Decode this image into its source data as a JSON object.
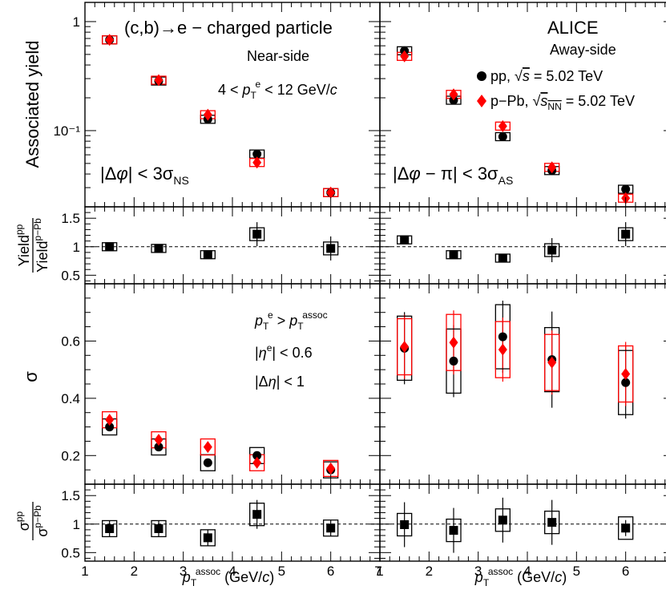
{
  "chart_data": {
    "type": "scatter",
    "experiment": "ALICE",
    "process": "(c,b)→e − charged particle",
    "trigger_range": "4 < p_T^e < 12 GeV/c",
    "near_side_title": "Near-side",
    "away_side_title": "Away-side",
    "near_side_cut": "|Δφ| < 3σ_NS",
    "away_side_cut": "|Δφ − π| < 3σ_AS",
    "kinematic_cuts": [
      "p_T^e > p_T^assoc",
      "|η^e| < 0.6",
      "|Δη| < 1"
    ],
    "xlabel": "p_T^assoc (GeV/c)",
    "xlim": [
      1,
      7
    ],
    "x_ticks": [
      1,
      2,
      3,
      4,
      5,
      6,
      7
    ],
    "x": [
      1.5,
      2.5,
      3.5,
      4.5,
      6.0
    ],
    "legend": {
      "placement": "top-right of away-side panel",
      "entries": [
        "pp, √s = 5.02 TeV",
        "p−Pb, √s_NN = 5.02 TeV"
      ]
    },
    "panels": {
      "yield": {
        "ylabel": "Associated yield",
        "yscale": "log",
        "ylim": [
          0.02,
          1.5
        ],
        "y_ticks": [
          "1",
          "10^-1"
        ],
        "near_side": {
          "pp": [
            0.68,
            0.285,
            0.127,
            0.061,
            0.027
          ],
          "pPb": [
            0.68,
            0.29,
            0.14,
            0.051,
            0.027
          ]
        },
        "away_side": {
          "pp": [
            0.54,
            0.19,
            0.088,
            0.043,
            0.029
          ],
          "pPb": [
            0.48,
            0.215,
            0.11,
            0.046,
            0.024
          ]
        }
      },
      "yield_ratio": {
        "ylabel": "Yield^pp / Yield^p−Pb",
        "ylim": [
          0.35,
          1.7
        ],
        "y_ticks": [
          "0.5",
          "1",
          "1.5"
        ],
        "reference_line": 1,
        "near_side": {
          "ratio": [
            1.0,
            0.97,
            0.86,
            1.22,
            0.97
          ]
        },
        "away_side": {
          "ratio": [
            1.12,
            0.86,
            0.8,
            0.94,
            1.22
          ]
        }
      },
      "sigma": {
        "ylabel": "σ",
        "ylim": [
          0.1,
          0.8
        ],
        "y_ticks": [
          "0.2",
          "0.4",
          "0.6"
        ],
        "near_side": {
          "pp": [
            0.3,
            0.23,
            0.175,
            0.2,
            0.15
          ],
          "pPb": [
            0.325,
            0.255,
            0.23,
            0.175,
            0.155
          ]
        },
        "away_side": {
          "pp": [
            0.575,
            0.53,
            0.615,
            0.535,
            0.455
          ],
          "pPb": [
            0.58,
            0.595,
            0.57,
            0.525,
            0.485
          ]
        }
      },
      "sigma_ratio": {
        "ylabel": "σ^pp / σ^p−Pb",
        "ylim": [
          0.35,
          1.7
        ],
        "y_ticks": [
          "0.5",
          "1",
          "1.5"
        ],
        "reference_line": 1,
        "near_side": {
          "ratio": [
            0.92,
            0.92,
            0.76,
            1.17,
            0.93
          ]
        },
        "away_side": {
          "ratio": [
            0.99,
            0.89,
            1.07,
            1.03,
            0.93
          ]
        }
      }
    },
    "colors": {
      "pp": "#000000",
      "pPb": "#ff0000"
    }
  }
}
